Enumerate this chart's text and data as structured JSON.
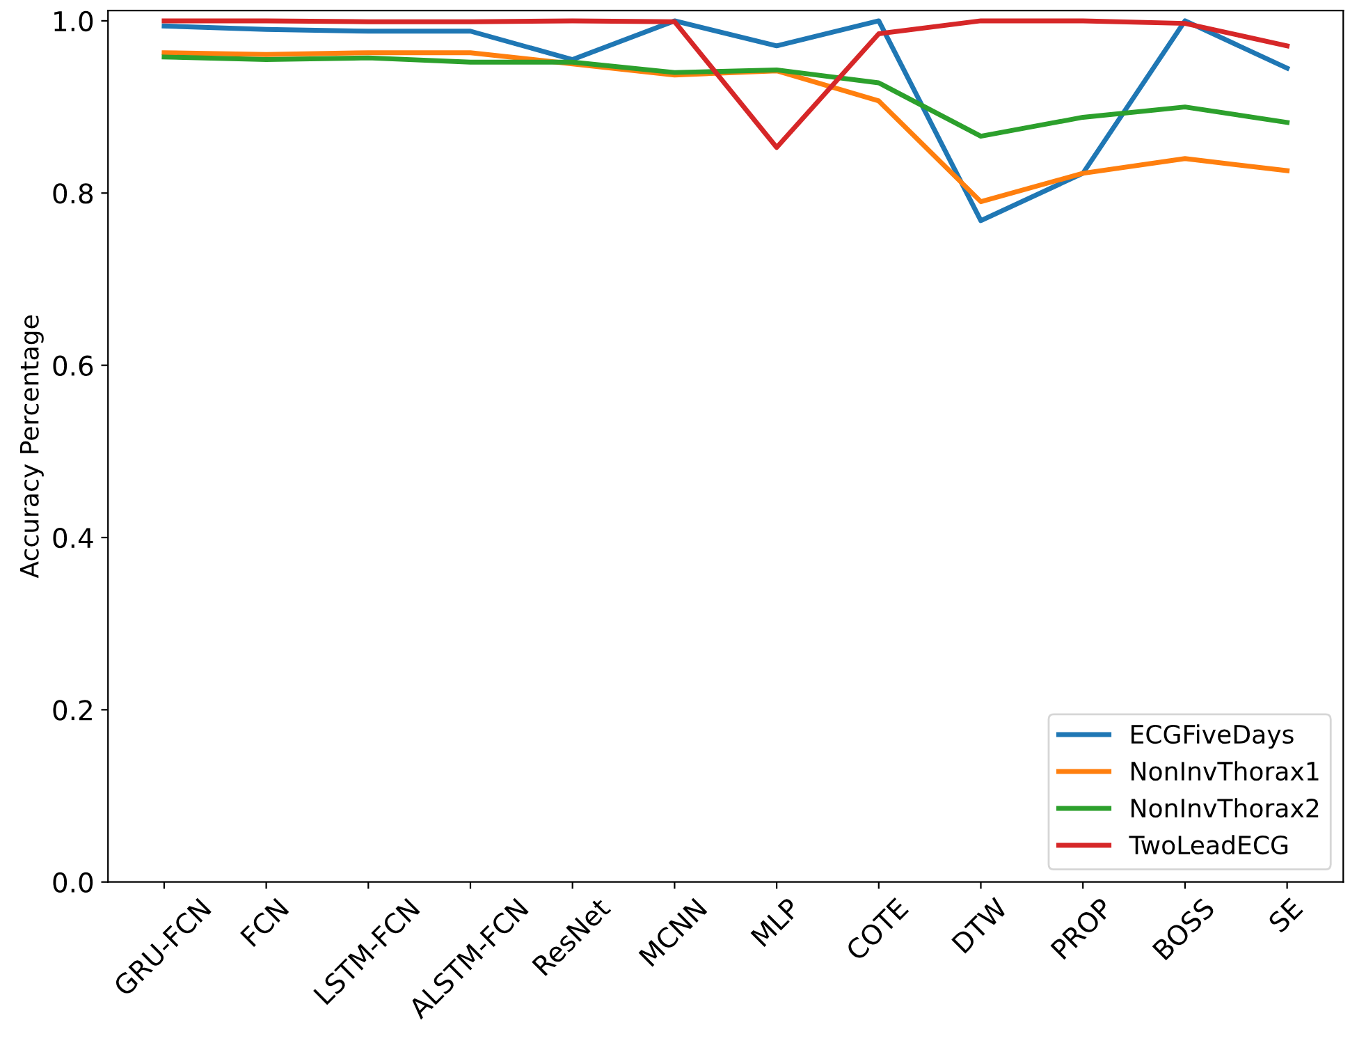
{
  "chart_data": {
    "type": "line",
    "ylabel": "Accuracy Percentage",
    "categories": [
      "GRU-FCN",
      "FCN",
      "LSTM-FCN",
      "ALSTM-FCN",
      "ResNet",
      "MCNN",
      "MLP",
      "COTE",
      "DTW",
      "PROP",
      "BOSS",
      "SE"
    ],
    "series": [
      {
        "name": "ECGFiveDays",
        "color": "#1f77b4",
        "values": [
          0.994,
          0.99,
          0.988,
          0.988,
          0.955,
          1.0,
          0.971,
          1.0,
          0.768,
          0.823,
          1.0,
          0.945
        ]
      },
      {
        "name": "NonInvThorax1",
        "color": "#ff7f0e",
        "values": [
          0.963,
          0.961,
          0.963,
          0.963,
          0.95,
          0.937,
          0.942,
          0.907,
          0.79,
          0.823,
          0.84,
          0.826
        ]
      },
      {
        "name": "NonInvThorax2",
        "color": "#2ca02c",
        "values": [
          0.958,
          0.955,
          0.957,
          0.952,
          0.952,
          0.94,
          0.943,
          0.928,
          0.866,
          0.888,
          0.9,
          0.882
        ]
      },
      {
        "name": "TwoLeadECG",
        "color": "#d62728",
        "values": [
          1.0,
          1.0,
          0.999,
          0.999,
          1.0,
          0.999,
          0.853,
          0.985,
          1.0,
          1.0,
          0.997,
          0.971
        ]
      }
    ],
    "ylim": [
      0,
      1.012
    ],
    "yticks": [
      {
        "value": 0,
        "label": "0.0"
      },
      0.2,
      0.4,
      0.6,
      0.8,
      {
        "value": 1,
        "label": "1.0"
      }
    ],
    "legend": "bottom right",
    "grid": false,
    "marker": "none",
    "line_style": "solid"
  }
}
